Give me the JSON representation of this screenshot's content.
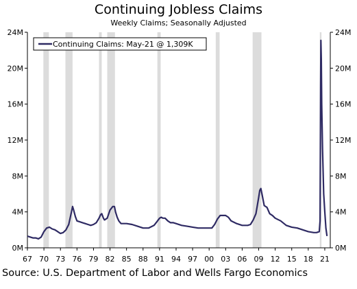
{
  "chart_data": {
    "type": "line",
    "title": "Continuing Jobless Claims",
    "subtitle": "Weekly Claims; Seasonally Adjusted",
    "y_unit": "millions",
    "ylim": [
      0,
      24
    ],
    "ytick_labels": [
      "0M",
      "4M",
      "8M",
      "12M",
      "16M",
      "20M",
      "24M"
    ],
    "xlim": [
      1967,
      2022
    ],
    "xtick_labels": [
      "67",
      "70",
      "73",
      "76",
      "79",
      "82",
      "85",
      "88",
      "91",
      "94",
      "97",
      "00",
      "03",
      "06",
      "09",
      "12",
      "15",
      "18",
      "21"
    ],
    "legend": "Continuing Claims: May-21 @ 1,309K",
    "legend_position": "top-left",
    "grid": false,
    "recessions": [
      [
        1969.9,
        1970.9
      ],
      [
        1973.9,
        1975.2
      ],
      [
        1980.0,
        1980.5
      ],
      [
        1981.5,
        1982.9
      ],
      [
        1990.6,
        1991.2
      ],
      [
        2001.2,
        2001.9
      ],
      [
        2007.9,
        2009.5
      ],
      [
        2020.1,
        2020.4
      ]
    ],
    "series": [
      {
        "name": "Continuing Claims",
        "color": "#2e2a63",
        "x": [
          1967.0,
          1967.5,
          1968.0,
          1968.5,
          1969.0,
          1969.5,
          1970.0,
          1970.5,
          1971.0,
          1971.5,
          1972.0,
          1972.5,
          1973.0,
          1973.5,
          1974.0,
          1974.5,
          1975.0,
          1975.2,
          1975.4,
          1975.7,
          1976.0,
          1976.5,
          1977.0,
          1977.5,
          1978.0,
          1978.5,
          1979.0,
          1979.5,
          1980.0,
          1980.3,
          1980.5,
          1980.8,
          1981.0,
          1981.5,
          1982.0,
          1982.5,
          1982.8,
          1983.0,
          1983.3,
          1983.6,
          1984.0,
          1985.0,
          1986.0,
          1987.0,
          1988.0,
          1989.0,
          1990.0,
          1990.5,
          1991.0,
          1991.3,
          1991.6,
          1992.0,
          1992.5,
          1993.0,
          1993.5,
          1994.0,
          1995.0,
          1996.0,
          1997.0,
          1998.0,
          1999.0,
          2000.0,
          2000.5,
          2001.0,
          2001.5,
          2002.0,
          2002.5,
          2003.0,
          2003.5,
          2004.0,
          2005.0,
          2006.0,
          2007.0,
          2007.5,
          2008.0,
          2008.5,
          2009.0,
          2009.2,
          2009.4,
          2009.6,
          2010.0,
          2010.5,
          2011.0,
          2011.5,
          2012.0,
          2013.0,
          2014.0,
          2015.0,
          2016.0,
          2017.0,
          2018.0,
          2019.0,
          2019.5,
          2020.0,
          2020.15,
          2020.25,
          2020.3,
          2020.37,
          2020.45,
          2020.6,
          2020.8,
          2021.0,
          2021.2,
          2021.4
        ],
        "values": [
          1.3,
          1.2,
          1.1,
          1.1,
          1.0,
          1.2,
          1.8,
          2.2,
          2.3,
          2.1,
          2.0,
          1.8,
          1.6,
          1.7,
          2.0,
          2.6,
          4.0,
          4.6,
          4.2,
          3.5,
          3.0,
          2.9,
          2.8,
          2.7,
          2.6,
          2.5,
          2.6,
          2.8,
          3.3,
          3.7,
          3.8,
          3.3,
          3.1,
          3.3,
          4.2,
          4.6,
          4.6,
          4.0,
          3.4,
          3.0,
          2.7,
          2.7,
          2.6,
          2.4,
          2.2,
          2.2,
          2.5,
          2.9,
          3.3,
          3.4,
          3.3,
          3.3,
          3.0,
          2.8,
          2.8,
          2.7,
          2.5,
          2.4,
          2.3,
          2.2,
          2.2,
          2.2,
          2.2,
          2.6,
          3.2,
          3.6,
          3.6,
          3.6,
          3.4,
          3.0,
          2.7,
          2.5,
          2.5,
          2.6,
          3.1,
          3.8,
          5.6,
          6.4,
          6.6,
          6.0,
          4.7,
          4.5,
          3.8,
          3.6,
          3.3,
          3.0,
          2.5,
          2.3,
          2.2,
          2.0,
          1.8,
          1.7,
          1.7,
          1.8,
          3.0,
          18.0,
          23.1,
          21.0,
          16.0,
          11.0,
          6.0,
          4.0,
          2.2,
          1.31
        ]
      }
    ]
  },
  "source": "Source: U.S. Department of Labor and Wells Fargo Economics"
}
